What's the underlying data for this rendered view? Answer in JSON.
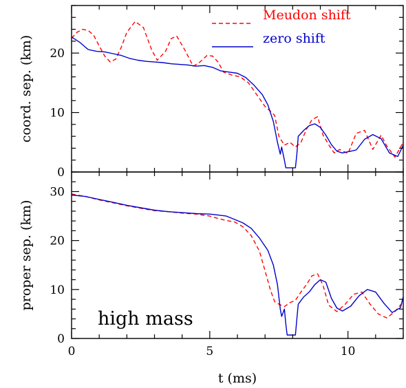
{
  "chart_data": [
    {
      "type": "line",
      "panel": "top",
      "ylabel": "coord. sep. (km)",
      "xlabel": "",
      "xlim": [
        0,
        12
      ],
      "ylim": [
        0,
        28
      ],
      "yticks": [
        0,
        10,
        20
      ],
      "xticks": [
        0,
        5,
        10
      ],
      "legend_position": "top-right",
      "series": [
        {
          "name": "Meudon shift",
          "color": "#ff0000",
          "dash": "dashed",
          "x": [
            0,
            0.2,
            0.4,
            0.6,
            0.8,
            1.0,
            1.2,
            1.4,
            1.6,
            1.8,
            2.0,
            2.3,
            2.6,
            2.9,
            3.1,
            3.4,
            3.6,
            3.8,
            4.1,
            4.4,
            4.6,
            4.9,
            5.1,
            5.3,
            5.5,
            5.8,
            6.1,
            6.4,
            6.7,
            7.0,
            7.2,
            7.35,
            7.5,
            7.7,
            7.9,
            8.1,
            8.3,
            8.5,
            8.7,
            8.9,
            9.1,
            9.3,
            9.5,
            9.7,
            10.0,
            10.3,
            10.6,
            10.9,
            11.2,
            11.4,
            11.7,
            12.0
          ],
          "y": [
            22.5,
            23.5,
            24.0,
            23.8,
            23.0,
            21.2,
            19.5,
            18.5,
            19.0,
            21.0,
            23.5,
            25.3,
            24.3,
            20.5,
            18.8,
            20.3,
            22.4,
            22.9,
            20.5,
            17.8,
            18.3,
            19.6,
            19.5,
            18.5,
            16.8,
            16.3,
            16.0,
            15.0,
            13.0,
            11.0,
            10.2,
            9.5,
            6.0,
            4.5,
            5.0,
            4.2,
            5.0,
            7.2,
            8.8,
            9.3,
            6.2,
            4.6,
            3.2,
            3.8,
            3.1,
            6.5,
            7.0,
            3.8,
            6.2,
            4.4,
            2.5,
            5.0
          ]
        },
        {
          "name": "zero shift",
          "color": "#0000cc",
          "dash": "solid",
          "x": [
            0,
            0.3,
            0.6,
            0.9,
            1.2,
            1.5,
            1.8,
            2.1,
            2.4,
            2.7,
            3.0,
            3.3,
            3.6,
            3.9,
            4.2,
            4.5,
            4.8,
            5.1,
            5.4,
            5.7,
            6.0,
            6.3,
            6.6,
            6.9,
            7.1,
            7.3,
            7.45,
            7.55,
            7.6,
            7.7,
            7.75,
            7.8,
            7.85,
            7.9,
            8.0,
            8.1,
            8.15,
            8.2,
            8.4,
            8.6,
            8.8,
            9.0,
            9.2,
            9.4,
            9.6,
            9.8,
            10.0,
            10.3,
            10.6,
            10.9,
            11.2,
            11.5,
            11.8,
            12.0
          ],
          "y": [
            22.7,
            21.8,
            20.6,
            20.3,
            20.2,
            19.9,
            19.6,
            19.1,
            18.8,
            18.6,
            18.5,
            18.4,
            18.2,
            18.1,
            18.0,
            17.8,
            17.9,
            17.6,
            17.0,
            16.8,
            16.6,
            15.9,
            14.6,
            13.0,
            11.3,
            8.5,
            5.0,
            3.0,
            4.2,
            2.0,
            0.7,
            0.7,
            0.7,
            0.7,
            0.7,
            0.7,
            3.0,
            6.0,
            7.0,
            7.8,
            8.1,
            7.5,
            6.2,
            4.6,
            3.5,
            3.2,
            3.4,
            3.7,
            5.5,
            6.3,
            5.6,
            3.2,
            2.6,
            4.5
          ]
        }
      ]
    },
    {
      "type": "line",
      "panel": "bottom",
      "ylabel": "proper sep. (km)",
      "xlabel": "t (ms)",
      "xlim": [
        0,
        12
      ],
      "ylim": [
        0,
        34
      ],
      "yticks": [
        0,
        10,
        20,
        30
      ],
      "xticks": [
        0,
        5,
        10
      ],
      "annotation": "high mass",
      "series": [
        {
          "name": "Meudon shift",
          "color": "#ff0000",
          "dash": "dashed",
          "x": [
            0,
            0.5,
            1.0,
            1.5,
            2.0,
            2.5,
            3.0,
            3.5,
            4.0,
            4.5,
            5.0,
            5.3,
            5.6,
            5.9,
            6.2,
            6.5,
            6.8,
            7.0,
            7.2,
            7.35,
            7.5,
            7.7,
            7.9,
            8.1,
            8.3,
            8.5,
            8.7,
            8.9,
            9.1,
            9.3,
            9.6,
            9.9,
            10.2,
            10.5,
            10.8,
            11.1,
            11.4,
            11.7,
            12.0
          ],
          "y": [
            29.5,
            29.0,
            28.3,
            27.7,
            27.1,
            26.6,
            26.1,
            25.9,
            25.6,
            25.4,
            25.0,
            24.5,
            24.1,
            23.8,
            22.8,
            21.0,
            17.8,
            13.8,
            9.8,
            7.5,
            7.0,
            6.5,
            7.3,
            7.8,
            9.5,
            11.0,
            12.8,
            13.2,
            10.8,
            6.8,
            5.5,
            7.0,
            9.0,
            9.5,
            7.0,
            5.0,
            4.2,
            5.5,
            7.5
          ]
        },
        {
          "name": "zero shift",
          "color": "#0000cc",
          "dash": "solid",
          "x": [
            0,
            0.5,
            1.0,
            1.5,
            2.0,
            2.5,
            3.0,
            3.5,
            4.0,
            4.5,
            5.0,
            5.3,
            5.6,
            5.9,
            6.2,
            6.5,
            6.8,
            7.1,
            7.3,
            7.45,
            7.55,
            7.6,
            7.7,
            7.75,
            7.8,
            7.9,
            8.0,
            8.1,
            8.15,
            8.2,
            8.4,
            8.6,
            8.8,
            9.0,
            9.2,
            9.4,
            9.6,
            9.8,
            10.1,
            10.4,
            10.7,
            11.0,
            11.3,
            11.6,
            11.9,
            12.0
          ],
          "y": [
            29.3,
            29.0,
            28.4,
            27.8,
            27.2,
            26.7,
            26.2,
            25.9,
            25.7,
            25.5,
            25.4,
            25.2,
            25.0,
            24.3,
            23.6,
            22.5,
            20.5,
            18.0,
            15.0,
            11.0,
            6.0,
            4.5,
            6.0,
            3.0,
            0.7,
            0.7,
            0.7,
            0.7,
            4.0,
            7.0,
            8.5,
            9.5,
            11.0,
            12.0,
            11.5,
            8.2,
            6.2,
            5.6,
            6.6,
            8.7,
            10.0,
            9.5,
            7.2,
            5.3,
            6.3,
            8.5
          ]
        }
      ]
    }
  ]
}
